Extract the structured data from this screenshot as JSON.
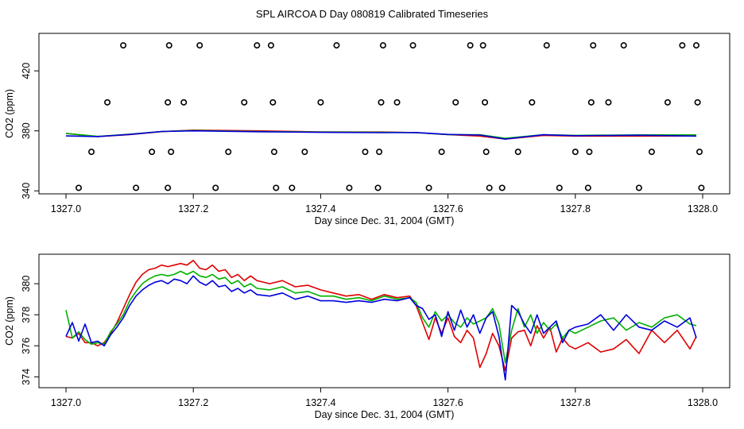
{
  "title": "SPL AIRCOA D  Day 080819  Calibrated Timeseries",
  "colors": {
    "red": "#e00000",
    "green": "#00b000",
    "blue": "#0000dd",
    "axis": "#000000"
  },
  "chart_data": [
    {
      "type": "line",
      "xlabel": "Day since Dec. 31, 2004 (GMT)",
      "ylabel": "CO2 (ppm)",
      "xlim": [
        1327.0,
        1328.0
      ],
      "ylim": [
        338,
        445
      ],
      "xticks": [
        "1327.0",
        "1327.2",
        "1327.4",
        "1327.6",
        "1327.8",
        "1328.0"
      ],
      "xtick_values": [
        1327.0,
        1327.2,
        1327.4,
        1327.6,
        1327.8,
        1328.0
      ],
      "yticks": [
        "340",
        "380",
        "420"
      ],
      "ytick_values": [
        340,
        380,
        420
      ],
      "series": [
        {
          "color": "#e00000",
          "x": [
            1327.0,
            1327.05,
            1327.1,
            1327.15,
            1327.2,
            1327.3,
            1327.4,
            1327.5,
            1327.55,
            1327.6,
            1327.65,
            1327.69,
            1327.75,
            1327.8,
            1327.9,
            1327.99
          ],
          "y": [
            378.3,
            376.2,
            377.5,
            379.5,
            380.5,
            380,
            379.3,
            379.2,
            378.8,
            377.5,
            376.5,
            374.5,
            377,
            376.5,
            376.5,
            376.6
          ]
        },
        {
          "color": "#00b000",
          "x": [
            1327.0,
            1327.05,
            1327.1,
            1327.15,
            1327.2,
            1327.3,
            1327.4,
            1327.5,
            1327.55,
            1327.6,
            1327.65,
            1327.69,
            1327.75,
            1327.8,
            1327.9,
            1327.99
          ],
          "y": [
            378.3,
            376.3,
            377.8,
            379.6,
            380.2,
            379.6,
            379.2,
            379.0,
            378.8,
            377.5,
            377.4,
            375,
            377.4,
            377,
            377.3,
            377.3
          ]
        },
        {
          "color": "#0000dd",
          "x": [
            1327.0,
            1327.05,
            1327.1,
            1327.15,
            1327.2,
            1327.3,
            1327.4,
            1327.5,
            1327.55,
            1327.6,
            1327.65,
            1327.69,
            1327.75,
            1327.8,
            1327.9,
            1327.99
          ],
          "y": [
            376.6,
            376.2,
            377.6,
            379.6,
            380,
            379.4,
            379,
            378.8,
            378.9,
            377.6,
            377.2,
            374.5,
            377.4,
            376.8,
            377.1,
            376.5
          ]
        }
      ],
      "scatter": {
        "x": [
          1327.02,
          1327.04,
          1327.065,
          1327.09,
          1327.11,
          1327.135,
          1327.16,
          1327.165,
          1327.16,
          1327.162,
          1327.185,
          1327.21,
          1327.235,
          1327.255,
          1327.28,
          1327.3,
          1327.322,
          1327.325,
          1327.327,
          1327.33,
          1327.355,
          1327.375,
          1327.4,
          1327.425,
          1327.445,
          1327.47,
          1327.49,
          1327.492,
          1327.495,
          1327.498,
          1327.52,
          1327.545,
          1327.57,
          1327.59,
          1327.612,
          1327.635,
          1327.655,
          1327.658,
          1327.66,
          1327.665,
          1327.685,
          1327.71,
          1327.732,
          1327.755,
          1327.775,
          1327.8,
          1327.82,
          1327.822,
          1327.825,
          1327.828,
          1327.852,
          1327.876,
          1327.9,
          1327.92,
          1327.945,
          1327.968,
          1327.99,
          1327.992,
          1327.995,
          1327.998
        ],
        "y": [
          342,
          366,
          399,
          437,
          342,
          366,
          342,
          366,
          399,
          437,
          399,
          437,
          342,
          366,
          399,
          437,
          437,
          399,
          366,
          342,
          342,
          366,
          399,
          437,
          342,
          366,
          342,
          366,
          399,
          437,
          399,
          437,
          342,
          366,
          399,
          437,
          437,
          399,
          366,
          342,
          342,
          366,
          399,
          437,
          342,
          366,
          342,
          366,
          399,
          437,
          399,
          437,
          342,
          366,
          399,
          437,
          437,
          399,
          366,
          342
        ]
      }
    },
    {
      "type": "line",
      "xlabel": "Day since Dec. 31, 2004 (GMT)",
      "ylabel": "CO2 (ppm)",
      "xlim": [
        1327.0,
        1328.0
      ],
      "ylim": [
        373.3,
        381.9
      ],
      "xticks": [
        "1327.0",
        "1327.2",
        "1327.4",
        "1327.6",
        "1327.8",
        "1328.0"
      ],
      "xtick_values": [
        1327.0,
        1327.2,
        1327.4,
        1327.6,
        1327.8,
        1328.0
      ],
      "yticks": [
        "374",
        "376",
        "378",
        "380"
      ],
      "ytick_values": [
        374,
        376,
        378,
        380
      ],
      "series": [
        {
          "color": "#e00000",
          "x": [
            1327.0,
            1327.01,
            1327.02,
            1327.03,
            1327.04,
            1327.05,
            1327.06,
            1327.07,
            1327.08,
            1327.09,
            1327.1,
            1327.11,
            1327.12,
            1327.13,
            1327.14,
            1327.15,
            1327.16,
            1327.17,
            1327.18,
            1327.19,
            1327.2,
            1327.21,
            1327.22,
            1327.23,
            1327.24,
            1327.25,
            1327.26,
            1327.27,
            1327.28,
            1327.29,
            1327.3,
            1327.32,
            1327.34,
            1327.36,
            1327.38,
            1327.4,
            1327.42,
            1327.44,
            1327.46,
            1327.48,
            1327.5,
            1327.52,
            1327.54,
            1327.55,
            1327.56,
            1327.57,
            1327.58,
            1327.59,
            1327.6,
            1327.61,
            1327.62,
            1327.63,
            1327.64,
            1327.65,
            1327.66,
            1327.67,
            1327.68,
            1327.69,
            1327.7,
            1327.71,
            1327.72,
            1327.73,
            1327.74,
            1327.75,
            1327.76,
            1327.77,
            1327.78,
            1327.79,
            1327.8,
            1327.82,
            1327.84,
            1327.86,
            1327.88,
            1327.9,
            1327.92,
            1327.94,
            1327.96,
            1327.98,
            1327.99
          ],
          "y": [
            376.6,
            376.5,
            376.8,
            376.2,
            376.2,
            376.0,
            376.2,
            376.8,
            377.5,
            378.4,
            379.3,
            380.1,
            380.6,
            380.9,
            381.0,
            381.2,
            381.1,
            381.2,
            381.3,
            381.2,
            381.5,
            381.0,
            380.9,
            381.2,
            380.8,
            380.9,
            380.4,
            380.6,
            380.2,
            380.5,
            380.2,
            380.0,
            380.2,
            379.8,
            379.9,
            379.6,
            379.4,
            379.2,
            379.3,
            379.0,
            379.3,
            379.1,
            379.2,
            378.6,
            377.5,
            376.4,
            377.8,
            376.8,
            377.8,
            376.6,
            376.2,
            377.0,
            376.5,
            374.6,
            375.5,
            376.8,
            376.0,
            374.4,
            376.5,
            376.9,
            377.0,
            376.0,
            377.3,
            376.5,
            377.2,
            375.6,
            376.5,
            376.0,
            375.8,
            376.2,
            375.6,
            375.8,
            376.4,
            375.5,
            377.0,
            376.2,
            377.0,
            375.8,
            376.6
          ]
        },
        {
          "color": "#00b000",
          "x": [
            1327.0,
            1327.01,
            1327.02,
            1327.03,
            1327.04,
            1327.05,
            1327.06,
            1327.07,
            1327.08,
            1327.09,
            1327.1,
            1327.11,
            1327.12,
            1327.13,
            1327.14,
            1327.15,
            1327.16,
            1327.17,
            1327.18,
            1327.19,
            1327.2,
            1327.21,
            1327.22,
            1327.23,
            1327.24,
            1327.25,
            1327.26,
            1327.27,
            1327.28,
            1327.29,
            1327.3,
            1327.32,
            1327.34,
            1327.36,
            1327.38,
            1327.4,
            1327.42,
            1327.44,
            1327.46,
            1327.48,
            1327.5,
            1327.52,
            1327.54,
            1327.55,
            1327.56,
            1327.57,
            1327.58,
            1327.59,
            1327.6,
            1327.61,
            1327.62,
            1327.63,
            1327.64,
            1327.65,
            1327.66,
            1327.67,
            1327.68,
            1327.69,
            1327.7,
            1327.71,
            1327.72,
            1327.73,
            1327.74,
            1327.75,
            1327.76,
            1327.77,
            1327.78,
            1327.79,
            1327.8,
            1327.82,
            1327.84,
            1327.86,
            1327.88,
            1327.9,
            1327.92,
            1327.94,
            1327.96,
            1327.98,
            1327.99
          ],
          "y": [
            378.3,
            376.5,
            376.9,
            376.4,
            376.1,
            376.2,
            376.1,
            376.9,
            377.4,
            378.0,
            378.9,
            379.5,
            380.0,
            380.3,
            380.5,
            380.6,
            380.5,
            380.6,
            380.8,
            380.6,
            380.8,
            380.5,
            380.4,
            380.6,
            380.3,
            380.4,
            380.0,
            380.2,
            379.8,
            380.0,
            379.7,
            379.6,
            379.8,
            379.4,
            379.5,
            379.2,
            379.2,
            379.0,
            379.1,
            378.9,
            379.2,
            379.0,
            379.1,
            378.8,
            377.8,
            377.2,
            378.2,
            377.6,
            378.0,
            377.5,
            377.2,
            377.8,
            377.4,
            377.6,
            377.8,
            378.4,
            377.4,
            374.9,
            377.0,
            378.4,
            377.2,
            378.0,
            376.8,
            377.5,
            377.0,
            377.4,
            376.5,
            377.0,
            376.8,
            377.2,
            377.6,
            377.8,
            377.0,
            377.5,
            377.2,
            377.8,
            378.0,
            377.4,
            377.3
          ]
        },
        {
          "color": "#0000dd",
          "x": [
            1327.0,
            1327.01,
            1327.02,
            1327.03,
            1327.04,
            1327.05,
            1327.06,
            1327.07,
            1327.08,
            1327.09,
            1327.1,
            1327.11,
            1327.12,
            1327.13,
            1327.14,
            1327.15,
            1327.16,
            1327.17,
            1327.18,
            1327.19,
            1327.2,
            1327.21,
            1327.22,
            1327.23,
            1327.24,
            1327.25,
            1327.26,
            1327.27,
            1327.28,
            1327.29,
            1327.3,
            1327.32,
            1327.34,
            1327.36,
            1327.38,
            1327.4,
            1327.42,
            1327.44,
            1327.46,
            1327.48,
            1327.5,
            1327.52,
            1327.54,
            1327.55,
            1327.56,
            1327.57,
            1327.58,
            1327.59,
            1327.6,
            1327.61,
            1327.62,
            1327.63,
            1327.64,
            1327.65,
            1327.66,
            1327.67,
            1327.68,
            1327.69,
            1327.7,
            1327.71,
            1327.72,
            1327.73,
            1327.74,
            1327.75,
            1327.76,
            1327.77,
            1327.78,
            1327.79,
            1327.8,
            1327.82,
            1327.84,
            1327.86,
            1327.88,
            1327.9,
            1327.92,
            1327.94,
            1327.96,
            1327.98,
            1327.99
          ],
          "y": [
            376.6,
            377.5,
            376.3,
            377.4,
            376.2,
            376.3,
            376.0,
            376.7,
            377.2,
            377.8,
            378.6,
            379.2,
            379.6,
            379.9,
            380.1,
            380.2,
            380.0,
            380.3,
            380.2,
            380.0,
            380.5,
            380.1,
            379.9,
            380.2,
            379.8,
            379.9,
            379.5,
            379.7,
            379.4,
            379.6,
            379.3,
            379.2,
            379.4,
            379.0,
            379.2,
            378.9,
            378.9,
            378.8,
            378.9,
            378.8,
            379.0,
            378.9,
            379.1,
            378.6,
            378.4,
            377.7,
            378.0,
            376.6,
            378.2,
            377.0,
            378.3,
            377.2,
            378.0,
            376.8,
            377.8,
            378.2,
            376.6,
            373.8,
            378.6,
            378.2,
            377.4,
            376.8,
            378.0,
            376.8,
            377.2,
            377.6,
            376.2,
            377.0,
            377.2,
            377.4,
            378.0,
            377.0,
            378.0,
            377.2,
            377.0,
            377.6,
            377.2,
            377.8,
            376.5
          ]
        }
      ]
    }
  ]
}
